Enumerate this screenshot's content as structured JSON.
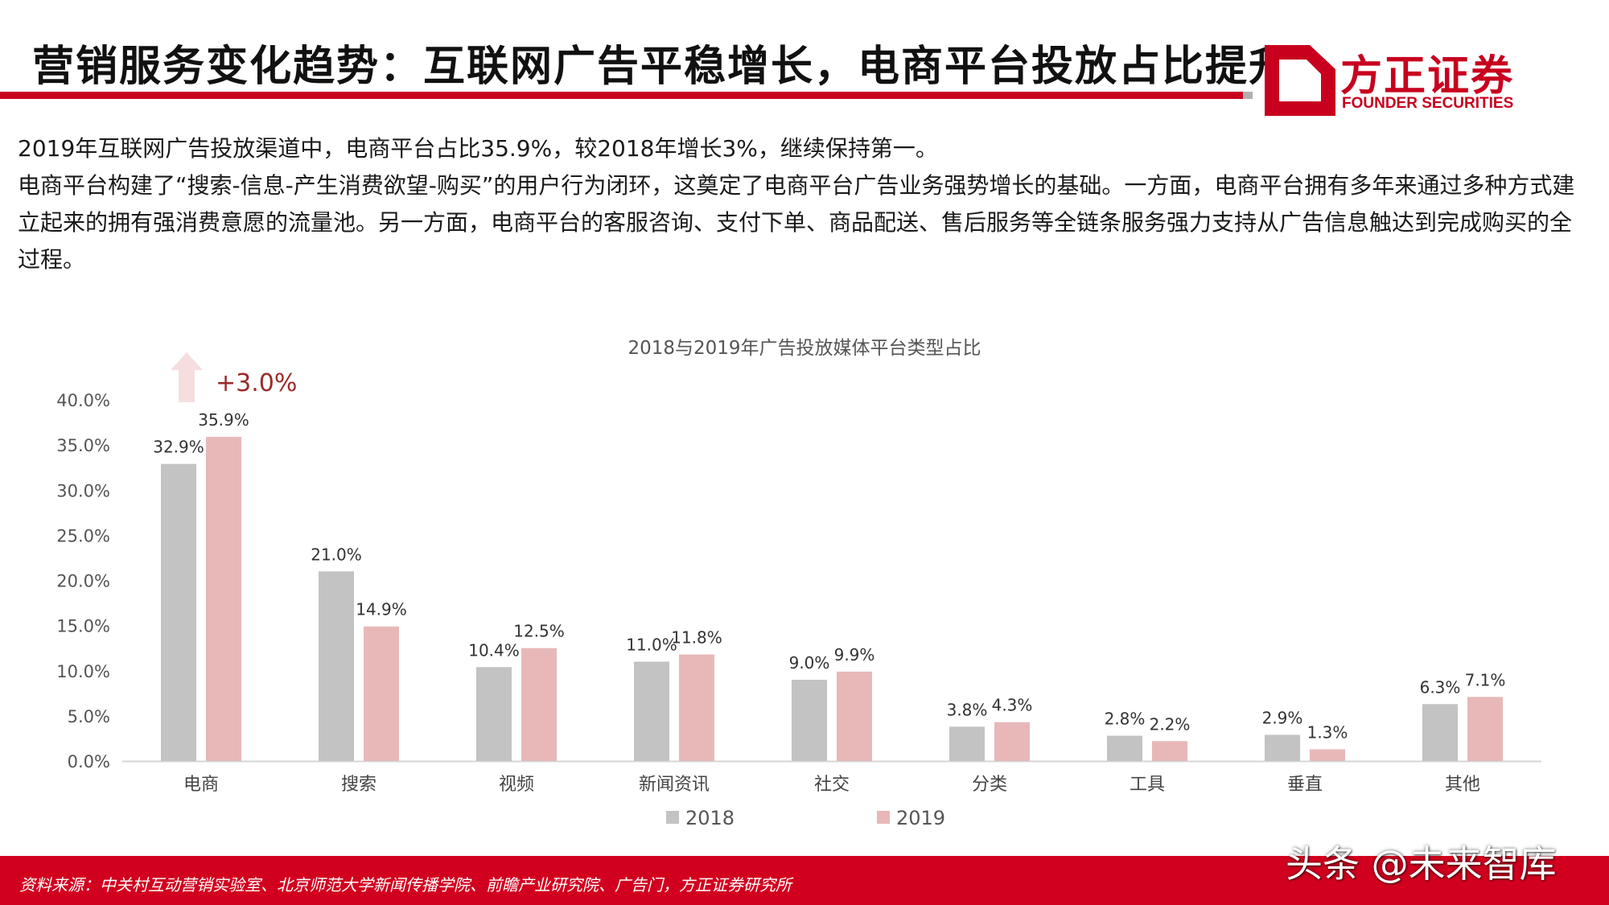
{
  "header": {
    "title": "营销服务变化趋势：互联网广告平稳增长，电商平台投放占比提升",
    "logo_cn": "方正证券",
    "logo_en": "FOUNDER SECURITIES"
  },
  "body": {
    "paragraph1": "2019年互联网广告投放渠道中，电商平台占比35.9%，较2018年增长3%，继续保持第一。",
    "paragraph2": "电商平台构建了“搜索-信息-产生消费欲望-购买”的用户行为闭环，这奠定了电商平台广告业务强势增长的基础。一方面，电商平台拥有多年来通过多种方式建立起来的拥有强消费意愿的流量池。另一方面，电商平台的客服咨询、支付下单、商品配送、售后服务等全链条服务强力支持从广告信息触达到完成购买的全过程。"
  },
  "annotation": {
    "text": "+3.0%"
  },
  "chart_data": {
    "type": "bar",
    "title": "2018与2019年广告投放媒体平台类型占比",
    "categories": [
      "电商",
      "搜索",
      "视频",
      "新闻资讯",
      "社交",
      "分类",
      "工具",
      "垂直",
      "其他"
    ],
    "series": [
      {
        "name": "2018",
        "values": [
          32.9,
          21.0,
          10.4,
          11.0,
          9.0,
          3.8,
          2.8,
          2.9,
          6.3
        ],
        "labels": [
          "32.9%",
          "21.0%",
          "10.4%",
          "11.0%",
          "9.0%",
          "3.8%",
          "2.8%",
          "2.9%",
          "6.3%"
        ]
      },
      {
        "name": "2019",
        "values": [
          35.9,
          14.9,
          12.5,
          11.8,
          9.9,
          4.3,
          2.2,
          1.3,
          7.1
        ],
        "labels": [
          "35.9%",
          "14.9%",
          "12.5%",
          "11.8%",
          "9.9%",
          "4.3%",
          "2.2%",
          "1.3%",
          "7.1%"
        ]
      }
    ],
    "yticks": [
      "0.0%",
      "5.0%",
      "10.0%",
      "15.0%",
      "20.0%",
      "25.0%",
      "30.0%",
      "35.0%",
      "40.0%"
    ],
    "ylim": [
      0,
      40
    ],
    "grid": false,
    "legend": "bottom",
    "colors": {
      "2018": "#c3c3c3",
      "2019": "#e8b8b8"
    }
  },
  "footer": {
    "source": "资料来源：中关村互动营销实验室、北京师范大学新闻传播学院、前瞻产业研究院、广告门，方正证券研究所",
    "watermark": "头条 @未来智库"
  },
  "colors": {
    "brand_red": "#c8001e",
    "annotation_red": "#9b2a2a",
    "arrow_pink": "#f6dede"
  }
}
